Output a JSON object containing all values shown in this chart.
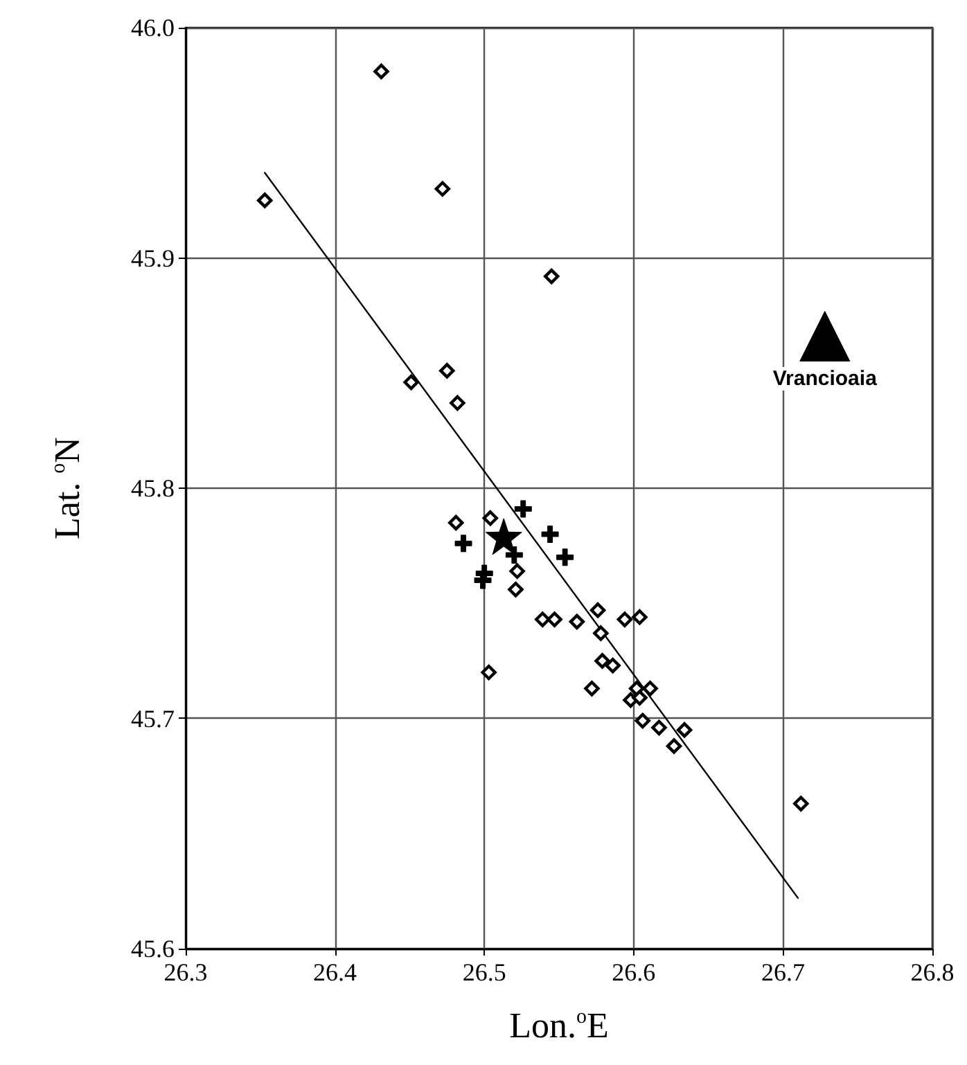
{
  "chart_data": {
    "type": "scatter",
    "xlabel": "Lon.$^{o}$E",
    "ylabel": "Lat. $^{o}$N",
    "xlim": [
      26.3,
      26.8
    ],
    "ylim": [
      45.6,
      46.0
    ],
    "xticks": [
      26.3,
      26.4,
      26.5,
      26.6,
      26.7,
      26.8
    ],
    "yticks": [
      {
        "value": 45.6,
        "label": "45.6"
      },
      {
        "value": 45.7,
        "label": "45.7"
      },
      {
        "value": 45.8,
        "label": "45.8"
      },
      {
        "value": 45.9,
        "label": "45.9"
      },
      {
        "value": 46.0,
        "label": "46.0"
      }
    ],
    "grid": true,
    "series": [
      {
        "type": "line",
        "color": "#000000",
        "marker": "none",
        "line_style": "solid",
        "x": [
          26.353,
          26.71
        ],
        "values": [
          45.937,
          45.622
        ]
      },
      {
        "color": "#000000",
        "marker": "diamond",
        "x": [
          26.353,
          26.431,
          26.472,
          26.545,
          26.475,
          26.451,
          26.482,
          26.481,
          26.504,
          26.522,
          26.521,
          26.539,
          26.547,
          26.562,
          26.576,
          26.578,
          26.594,
          26.604,
          26.579,
          26.586,
          26.503,
          26.572,
          26.602,
          26.611,
          26.598,
          26.604,
          26.606,
          26.617,
          26.634,
          26.627,
          26.712
        ],
        "values": [
          45.925,
          45.981,
          45.93,
          45.892,
          45.851,
          45.846,
          45.837,
          45.785,
          45.787,
          45.764,
          45.756,
          45.743,
          45.743,
          45.742,
          45.747,
          45.737,
          45.743,
          45.744,
          45.725,
          45.723,
          45.72,
          45.713,
          45.713,
          45.713,
          45.708,
          45.709,
          45.699,
          45.696,
          45.695,
          45.688,
          45.663
        ]
      },
      {
        "color": "#000000",
        "marker": "cross",
        "x": [
          26.526,
          26.486,
          26.544,
          26.52,
          26.554,
          26.5,
          26.499
        ],
        "values": [
          45.791,
          45.776,
          45.78,
          45.771,
          45.77,
          45.763,
          45.76
        ]
      },
      {
        "color": "#000000",
        "marker": "star",
        "x": [
          26.513
        ],
        "values": [
          45.779
        ]
      },
      {
        "name": "Vrancioaia",
        "color": "#000000",
        "marker": "triangle",
        "x": [
          26.728
        ],
        "values": [
          45.866
        ]
      }
    ]
  }
}
